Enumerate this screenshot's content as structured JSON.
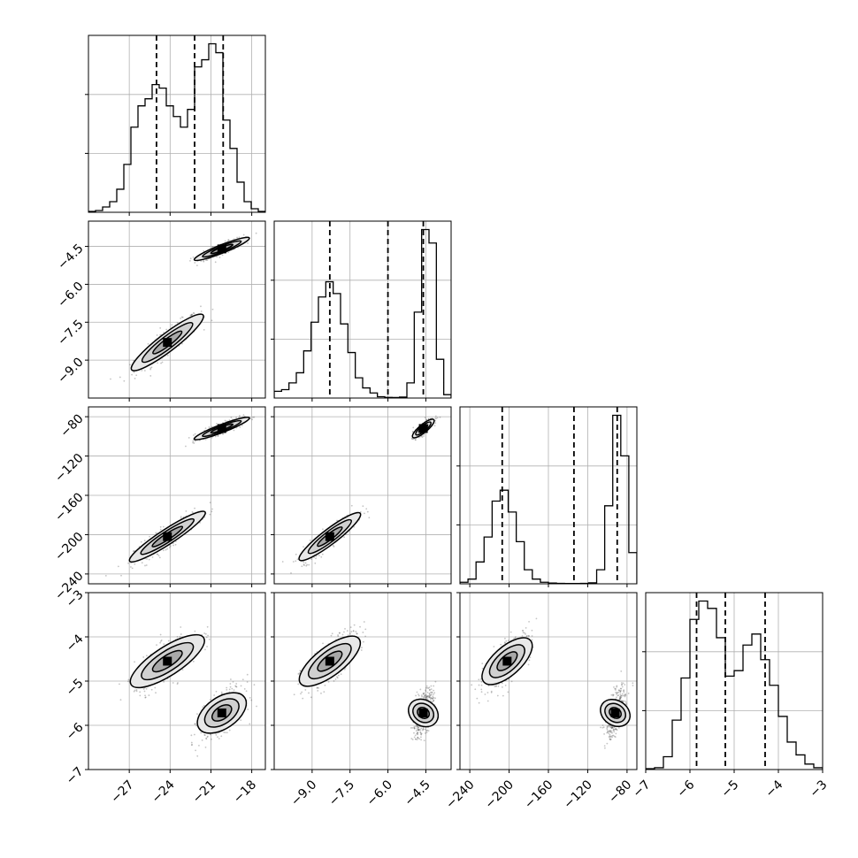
{
  "figure": {
    "type": "corner_plot",
    "background": "#ffffff",
    "line_color": "#000000",
    "grid_color": "#b0b0b0"
  },
  "chart_data": [
    {
      "type": "corner",
      "parameters": [
        {
          "range": [
            -30,
            -17
          ],
          "ticks": [
            -27,
            -24,
            -21,
            -18
          ],
          "tick_labels": [
            "−27",
            "−24",
            "−21",
            "−18"
          ],
          "quantiles": [
            -25.0,
            -22.2,
            -20.1
          ]
        },
        {
          "range": [
            -10.5,
            -3.5
          ],
          "ticks": [
            -9.0,
            -7.5,
            -6.0,
            -4.5
          ],
          "tick_labels": [
            "−9.0",
            "−7.5",
            "−6.0",
            "−4.5"
          ],
          "quantiles": [
            -8.3,
            -6.0,
            -4.6
          ]
        },
        {
          "range": [
            -250,
            -70
          ],
          "ticks": [
            -240,
            -200,
            -160,
            -120,
            -80
          ],
          "tick_labels": [
            "−240",
            "−200",
            "−160",
            "−120",
            "−80"
          ],
          "quantiles": [
            -207,
            -134,
            -90
          ]
        },
        {
          "range": [
            -7,
            -3
          ],
          "ticks": [
            -7,
            -6,
            -5,
            -4,
            -3
          ],
          "tick_labels": [
            "−7",
            "−6",
            "−5",
            "−4",
            "−3"
          ],
          "quantiles": [
            -5.85,
            -5.2,
            -4.3
          ]
        }
      ],
      "histograms": [
        [
          0.005,
          0.01,
          0.03,
          0.06,
          0.13,
          0.27,
          0.48,
          0.6,
          0.64,
          0.72,
          0.7,
          0.6,
          0.54,
          0.48,
          0.58,
          0.82,
          0.86,
          0.95,
          0.9,
          0.52,
          0.36,
          0.17,
          0.06,
          0.02,
          0.005
        ],
        [
          0.04,
          0.05,
          0.09,
          0.15,
          0.28,
          0.45,
          0.6,
          0.69,
          0.62,
          0.44,
          0.27,
          0.12,
          0.06,
          0.03,
          0.008,
          0.004,
          0.003,
          0.006,
          0.09,
          0.51,
          1.0,
          0.92,
          0.23,
          0.02
        ],
        [
          0.01,
          0.03,
          0.14,
          0.3,
          0.53,
          0.6,
          0.46,
          0.27,
          0.09,
          0.03,
          0.01,
          0.005,
          0.003,
          0.002,
          0.002,
          0.003,
          0.006,
          0.09,
          0.5,
          1.08,
          0.82,
          0.2
        ],
        [
          0.005,
          0.01,
          0.07,
          0.27,
          0.5,
          0.82,
          0.92,
          0.88,
          0.72,
          0.51,
          0.54,
          0.68,
          0.74,
          0.6,
          0.46,
          0.29,
          0.15,
          0.08,
          0.03,
          0.01
        ]
      ],
      "modes": [
        {
          "weight": 0.5,
          "mean": [
            -24.2,
            -8.3,
            -202,
            -4.55
          ],
          "std": [
            1.2,
            0.55,
            12,
            0.32
          ],
          "corr": 0.9
        },
        {
          "weight": 0.5,
          "mean": [
            -20.2,
            -4.6,
            -92,
            -5.72
          ],
          "std": [
            0.8,
            0.2,
            5,
            0.28
          ],
          "corr": 0.85
        }
      ]
    }
  ]
}
